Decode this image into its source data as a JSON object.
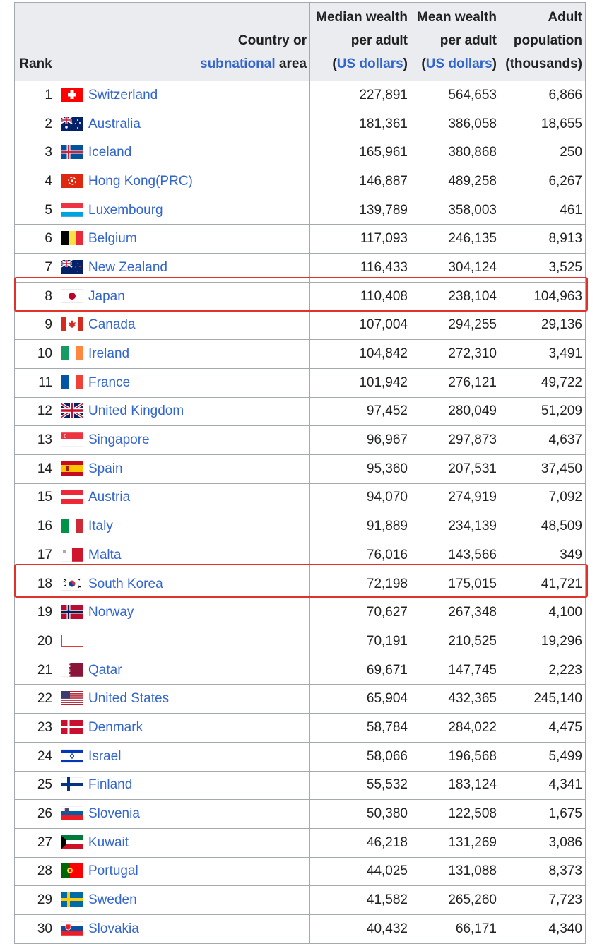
{
  "table": {
    "headers": {
      "rank": "Rank",
      "country_line1": "Country or",
      "country_link": "subnational",
      "country_suffix": " area",
      "median_line1": "Median wealth",
      "median_line2": "per adult",
      "median_open": "(",
      "median_link": "US dollars",
      "median_close": ")",
      "mean_line1": "Mean wealth",
      "mean_line2": "per adult",
      "mean_open": "(",
      "mean_link": "US dollars",
      "mean_close": ")",
      "pop_line1": "Adult",
      "pop_line2": "population",
      "pop_line3": "(thousands)"
    },
    "rows": [
      {
        "rank": "1",
        "country": "Switzerland",
        "median": "227,891",
        "mean": "564,653",
        "pop": "6,866",
        "flag": "switzerland-flag-icon"
      },
      {
        "rank": "2",
        "country": "Australia",
        "median": "181,361",
        "mean": "386,058",
        "pop": "18,655",
        "flag": "australia-flag-icon"
      },
      {
        "rank": "3",
        "country": "Iceland",
        "median": "165,961",
        "mean": "380,868",
        "pop": "250",
        "flag": "iceland-flag-icon"
      },
      {
        "rank": "4",
        "country": "Hong Kong(PRC)",
        "median": "146,887",
        "mean": "489,258",
        "pop": "6,267",
        "flag": "hong-kong-flag-icon"
      },
      {
        "rank": "5",
        "country": "Luxembourg",
        "median": "139,789",
        "mean": "358,003",
        "pop": "461",
        "flag": "luxembourg-flag-icon"
      },
      {
        "rank": "6",
        "country": "Belgium",
        "median": "117,093",
        "mean": "246,135",
        "pop": "8,913",
        "flag": "belgium-flag-icon"
      },
      {
        "rank": "7",
        "country": "New Zealand",
        "median": "116,433",
        "mean": "304,124",
        "pop": "3,525",
        "flag": "new-zealand-flag-icon"
      },
      {
        "rank": "8",
        "country": "Japan",
        "median": "110,408",
        "mean": "238,104",
        "pop": "104,963",
        "flag": "japan-flag-icon"
      },
      {
        "rank": "9",
        "country": "Canada",
        "median": "107,004",
        "mean": "294,255",
        "pop": "29,136",
        "flag": "canada-flag-icon"
      },
      {
        "rank": "10",
        "country": "Ireland",
        "median": "104,842",
        "mean": "272,310",
        "pop": "3,491",
        "flag": "ireland-flag-icon"
      },
      {
        "rank": "11",
        "country": "France",
        "median": "101,942",
        "mean": "276,121",
        "pop": "49,722",
        "flag": "france-flag-icon"
      },
      {
        "rank": "12",
        "country": "United Kingdom",
        "median": "97,452",
        "mean": "280,049",
        "pop": "51,209",
        "flag": "united-kingdom-flag-icon"
      },
      {
        "rank": "13",
        "country": "Singapore",
        "median": "96,967",
        "mean": "297,873",
        "pop": "4,637",
        "flag": "singapore-flag-icon"
      },
      {
        "rank": "14",
        "country": "Spain",
        "median": "95,360",
        "mean": "207,531",
        "pop": "37,450",
        "flag": "spain-flag-icon"
      },
      {
        "rank": "15",
        "country": "Austria",
        "median": "94,070",
        "mean": "274,919",
        "pop": "7,092",
        "flag": "austria-flag-icon"
      },
      {
        "rank": "16",
        "country": "Italy",
        "median": "91,889",
        "mean": "234,139",
        "pop": "48,509",
        "flag": "italy-flag-icon"
      },
      {
        "rank": "17",
        "country": "Malta",
        "median": "76,016",
        "mean": "143,566",
        "pop": "349",
        "flag": "malta-flag-icon"
      },
      {
        "rank": "18",
        "country": "South Korea",
        "median": "72,198",
        "mean": "175,015",
        "pop": "41,721",
        "flag": "south-korea-flag-icon"
      },
      {
        "rank": "19",
        "country": "Norway",
        "median": "70,627",
        "mean": "267,348",
        "pop": "4,100",
        "flag": "norway-flag-icon"
      },
      {
        "rank": "20",
        "country": "",
        "median": "70,191",
        "mean": "210,525",
        "pop": "19,296",
        "flag": "obscured-flag-icon"
      },
      {
        "rank": "21",
        "country": "Qatar",
        "median": "69,671",
        "mean": "147,745",
        "pop": "2,223",
        "flag": "qatar-flag-icon"
      },
      {
        "rank": "22",
        "country": "United States",
        "median": "65,904",
        "mean": "432,365",
        "pop": "245,140",
        "flag": "united-states-flag-icon"
      },
      {
        "rank": "23",
        "country": "Denmark",
        "median": "58,784",
        "mean": "284,022",
        "pop": "4,475",
        "flag": "denmark-flag-icon"
      },
      {
        "rank": "24",
        "country": "Israel",
        "median": "58,066",
        "mean": "196,568",
        "pop": "5,499",
        "flag": "israel-flag-icon"
      },
      {
        "rank": "25",
        "country": "Finland",
        "median": "55,532",
        "mean": "183,124",
        "pop": "4,341",
        "flag": "finland-flag-icon"
      },
      {
        "rank": "26",
        "country": "Slovenia",
        "median": "50,380",
        "mean": "122,508",
        "pop": "1,675",
        "flag": "slovenia-flag-icon"
      },
      {
        "rank": "27",
        "country": "Kuwait",
        "median": "46,218",
        "mean": "131,269",
        "pop": "3,086",
        "flag": "kuwait-flag-icon"
      },
      {
        "rank": "28",
        "country": "Portugal",
        "median": "44,025",
        "mean": "131,088",
        "pop": "8,373",
        "flag": "portugal-flag-icon"
      },
      {
        "rank": "29",
        "country": "Sweden",
        "median": "41,582",
        "mean": "265,260",
        "pop": "7,723",
        "flag": "sweden-flag-icon"
      },
      {
        "rank": "30",
        "country": "Slovakia",
        "median": "40,432",
        "mean": "66,171",
        "pop": "4,340",
        "flag": "slovakia-flag-icon"
      }
    ]
  },
  "highlights": [
    "8",
    "18"
  ],
  "colors": {
    "link": "#3366cc",
    "header_bg": "#eaecf0",
    "border": "#a2a9b1",
    "highlight": "#e0322b"
  }
}
